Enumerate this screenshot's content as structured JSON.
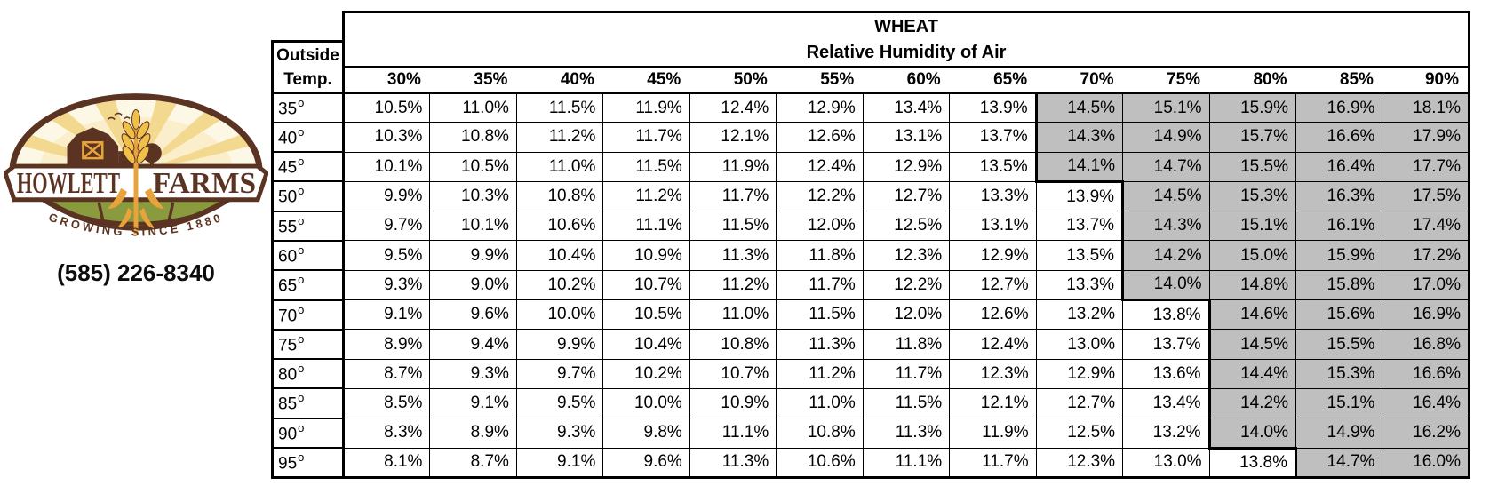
{
  "brand": {
    "logo_text_left": "HOWLETT",
    "logo_text_right": "FARMS",
    "logo_tagline": "GROWING SINCE 1880",
    "phone": "(585) 226-8340",
    "colors": {
      "brown": "#5b3322",
      "gold": "#e8a33c",
      "wheat_gold": "#f0c04a",
      "ray": "#f3d88f",
      "cream": "#fdf7e6",
      "glow": "#fbeecb",
      "green": "#8a9a3e",
      "dark_green": "#6d7c31"
    }
  },
  "table": {
    "title": "WHEAT",
    "subtitle": "Relative Humidity of Air",
    "corner_line1": "Outside",
    "corner_line2": "Temp.",
    "degree_mark": "o",
    "highlight_color": "#bfbfbf",
    "humidity_headers": [
      "30%",
      "35%",
      "40%",
      "45%",
      "50%",
      "55%",
      "60%",
      "65%",
      "70%",
      "75%",
      "80%",
      "85%",
      "90%"
    ],
    "rows": [
      {
        "temp": "35",
        "gray_start": 8,
        "values": [
          "10.5%",
          "11.0%",
          "11.5%",
          "11.9%",
          "12.4%",
          "12.9%",
          "13.4%",
          "13.9%",
          "14.5%",
          "15.1%",
          "15.9%",
          "16.9%",
          "18.1%"
        ]
      },
      {
        "temp": "40",
        "gray_start": 8,
        "values": [
          "10.3%",
          "10.8%",
          "11.2%",
          "11.7%",
          "12.1%",
          "12.6%",
          "13.1%",
          "13.7%",
          "14.3%",
          "14.9%",
          "15.7%",
          "16.6%",
          "17.9%"
        ]
      },
      {
        "temp": "45",
        "gray_start": 8,
        "values": [
          "10.1%",
          "10.5%",
          "11.0%",
          "11.5%",
          "11.9%",
          "12.4%",
          "12.9%",
          "13.5%",
          "14.1%",
          "14.7%",
          "15.5%",
          "16.4%",
          "17.7%"
        ]
      },
      {
        "temp": "50",
        "gray_start": 9,
        "values": [
          "9.9%",
          "10.3%",
          "10.8%",
          "11.2%",
          "11.7%",
          "12.2%",
          "12.7%",
          "13.3%",
          "13.9%",
          "14.5%",
          "15.3%",
          "16.3%",
          "17.5%"
        ]
      },
      {
        "temp": "55",
        "gray_start": 9,
        "values": [
          "9.7%",
          "10.1%",
          "10.6%",
          "11.1%",
          "11.5%",
          "12.0%",
          "12.5%",
          "13.1%",
          "13.7%",
          "14.3%",
          "15.1%",
          "16.1%",
          "17.4%"
        ]
      },
      {
        "temp": "60",
        "gray_start": 9,
        "values": [
          "9.5%",
          "9.9%",
          "10.4%",
          "10.9%",
          "11.3%",
          "11.8%",
          "12.3%",
          "12.9%",
          "13.5%",
          "14.2%",
          "15.0%",
          "15.9%",
          "17.2%"
        ]
      },
      {
        "temp": "65",
        "gray_start": 9,
        "values": [
          "9.3%",
          "9.0%",
          "10.2%",
          "10.7%",
          "11.2%",
          "11.7%",
          "12.2%",
          "12.7%",
          "13.3%",
          "14.0%",
          "14.8%",
          "15.8%",
          "17.0%"
        ]
      },
      {
        "temp": "70",
        "gray_start": 10,
        "values": [
          "9.1%",
          "9.6%",
          "10.0%",
          "10.5%",
          "11.0%",
          "11.5%",
          "12.0%",
          "12.6%",
          "13.2%",
          "13.8%",
          "14.6%",
          "15.6%",
          "16.9%"
        ]
      },
      {
        "temp": "75",
        "gray_start": 10,
        "values": [
          "8.9%",
          "9.4%",
          "9.9%",
          "10.4%",
          "10.8%",
          "11.3%",
          "11.8%",
          "12.4%",
          "13.0%",
          "13.7%",
          "14.5%",
          "15.5%",
          "16.8%"
        ]
      },
      {
        "temp": "80",
        "gray_start": 10,
        "values": [
          "8.7%",
          "9.3%",
          "9.7%",
          "10.2%",
          "10.7%",
          "11.2%",
          "11.7%",
          "12.3%",
          "12.9%",
          "13.6%",
          "14.4%",
          "15.3%",
          "16.6%"
        ]
      },
      {
        "temp": "85",
        "gray_start": 10,
        "values": [
          "8.5%",
          "9.1%",
          "9.5%",
          "10.0%",
          "10.9%",
          "11.0%",
          "11.5%",
          "12.1%",
          "12.7%",
          "13.4%",
          "14.2%",
          "15.1%",
          "16.4%"
        ]
      },
      {
        "temp": "90",
        "gray_start": 10,
        "values": [
          "8.3%",
          "8.9%",
          "9.3%",
          "9.8%",
          "11.1%",
          "10.8%",
          "11.3%",
          "11.9%",
          "12.5%",
          "13.2%",
          "14.0%",
          "14.9%",
          "16.2%"
        ]
      },
      {
        "temp": "95",
        "gray_start": 11,
        "values": [
          "8.1%",
          "8.7%",
          "9.1%",
          "9.6%",
          "11.3%",
          "10.6%",
          "11.1%",
          "11.7%",
          "12.3%",
          "13.0%",
          "13.8%",
          "14.7%",
          "16.0%"
        ]
      }
    ]
  }
}
